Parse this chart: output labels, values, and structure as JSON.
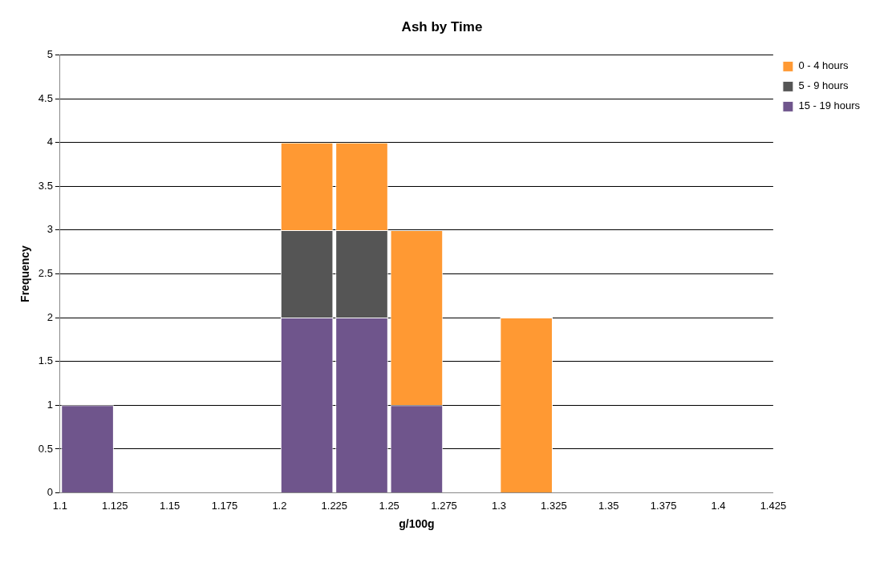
{
  "chart_data": {
    "type": "bar",
    "title": "Ash by Time",
    "xlabel": "g/100g",
    "ylabel": "Frequency",
    "x": [
      1.1125,
      1.1375,
      1.1625,
      1.1875,
      1.2125,
      1.2375,
      1.2625,
      1.2875,
      1.3125,
      1.3375,
      1.3625,
      1.3875,
      1.4125
    ],
    "series": [
      {
        "name": "15 - 19 hours",
        "color": "#6f558c",
        "values": [
          1,
          0,
          0,
          0,
          2,
          2,
          1,
          0,
          0,
          0,
          0,
          0,
          0
        ]
      },
      {
        "name": "5 - 9 hours",
        "color": "#555555",
        "values": [
          0,
          0,
          0,
          0,
          1,
          1,
          0,
          0,
          0,
          0,
          0,
          0,
          0
        ]
      },
      {
        "name": "0 - 4 hours",
        "color": "#ff9933",
        "values": [
          0,
          0,
          0,
          0,
          1,
          1,
          2,
          0,
          2,
          0,
          0,
          0,
          0
        ]
      }
    ],
    "stacked": true,
    "xlim": [
      1.1,
      1.425
    ],
    "xticks": [
      1.1,
      1.125,
      1.15,
      1.175,
      1.2,
      1.225,
      1.25,
      1.275,
      1.3,
      1.325,
      1.35,
      1.375,
      1.4,
      1.425
    ],
    "ylim": [
      0,
      5
    ],
    "yticks": [
      0,
      0.5,
      1,
      1.5,
      2,
      2.5,
      3,
      3.5,
      4,
      4.5,
      5
    ],
    "grid": "y",
    "legend": "top right"
  }
}
